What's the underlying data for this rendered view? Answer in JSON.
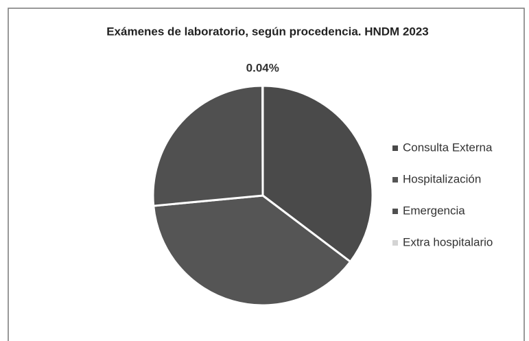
{
  "chart_data": {
    "type": "pie",
    "title": "Exámenes de laboratorio, según procedencia. HNDM 2023",
    "categories": [
      "Consulta Externa",
      "Hospitalización",
      "Emergencia",
      "Extra hospitalario"
    ],
    "values": [
      35.3,
      38.2,
      26.46,
      0.04
    ],
    "value_labels": [
      null,
      null,
      null,
      "0.04%"
    ],
    "colors": [
      "#4a4a4a",
      "#555555",
      "#505050",
      "#d4d4d4"
    ],
    "legend": "right"
  }
}
